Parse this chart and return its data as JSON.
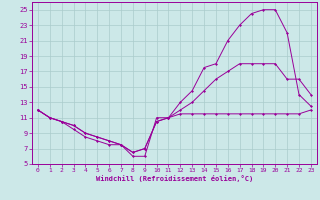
{
  "xlabel": "Windchill (Refroidissement éolien,°C)",
  "bg_color": "#cce8e8",
  "grid_color": "#aacccc",
  "line_color": "#990099",
  "xlim": [
    -0.5,
    23.5
  ],
  "ylim": [
    5,
    26
  ],
  "xticks": [
    0,
    1,
    2,
    3,
    4,
    5,
    6,
    7,
    8,
    9,
    10,
    11,
    12,
    13,
    14,
    15,
    16,
    17,
    18,
    19,
    20,
    21,
    22,
    23
  ],
  "yticks": [
    5,
    7,
    9,
    11,
    13,
    15,
    17,
    19,
    21,
    23,
    25
  ],
  "line1_x": [
    0,
    1,
    2,
    3,
    4,
    5,
    6,
    7,
    8,
    9,
    10,
    11,
    12,
    13,
    14,
    15,
    16,
    17,
    18,
    19,
    20,
    21,
    22,
    23
  ],
  "line1_y": [
    12,
    11,
    10.5,
    9.5,
    8.5,
    8,
    7.5,
    7.5,
    6,
    6,
    11,
    11,
    11.5,
    11.5,
    11.5,
    11.5,
    11.5,
    11.5,
    11.5,
    11.5,
    11.5,
    11.5,
    11.5,
    12
  ],
  "line2_x": [
    0,
    1,
    2,
    3,
    4,
    5,
    6,
    7,
    8,
    9,
    10,
    11,
    12,
    13,
    14,
    15,
    16,
    17,
    18,
    19,
    20,
    21,
    22,
    23
  ],
  "line2_y": [
    12,
    11,
    10.5,
    10,
    9,
    8.5,
    8,
    7.5,
    6.5,
    7,
    10.5,
    11,
    12,
    13,
    14.5,
    16,
    17,
    18,
    18,
    18,
    18,
    16,
    16,
    14
  ],
  "line3_x": [
    0,
    1,
    2,
    3,
    4,
    5,
    6,
    7,
    8,
    9,
    10,
    11,
    12,
    13,
    14,
    15,
    16,
    17,
    18,
    19,
    20,
    21,
    22,
    23
  ],
  "line3_y": [
    12,
    11,
    10.5,
    10,
    9,
    8.5,
    8,
    7.5,
    6.5,
    7,
    10.5,
    11,
    13,
    14.5,
    17.5,
    18,
    21,
    23,
    24.5,
    25,
    25,
    22,
    14,
    12.5
  ]
}
